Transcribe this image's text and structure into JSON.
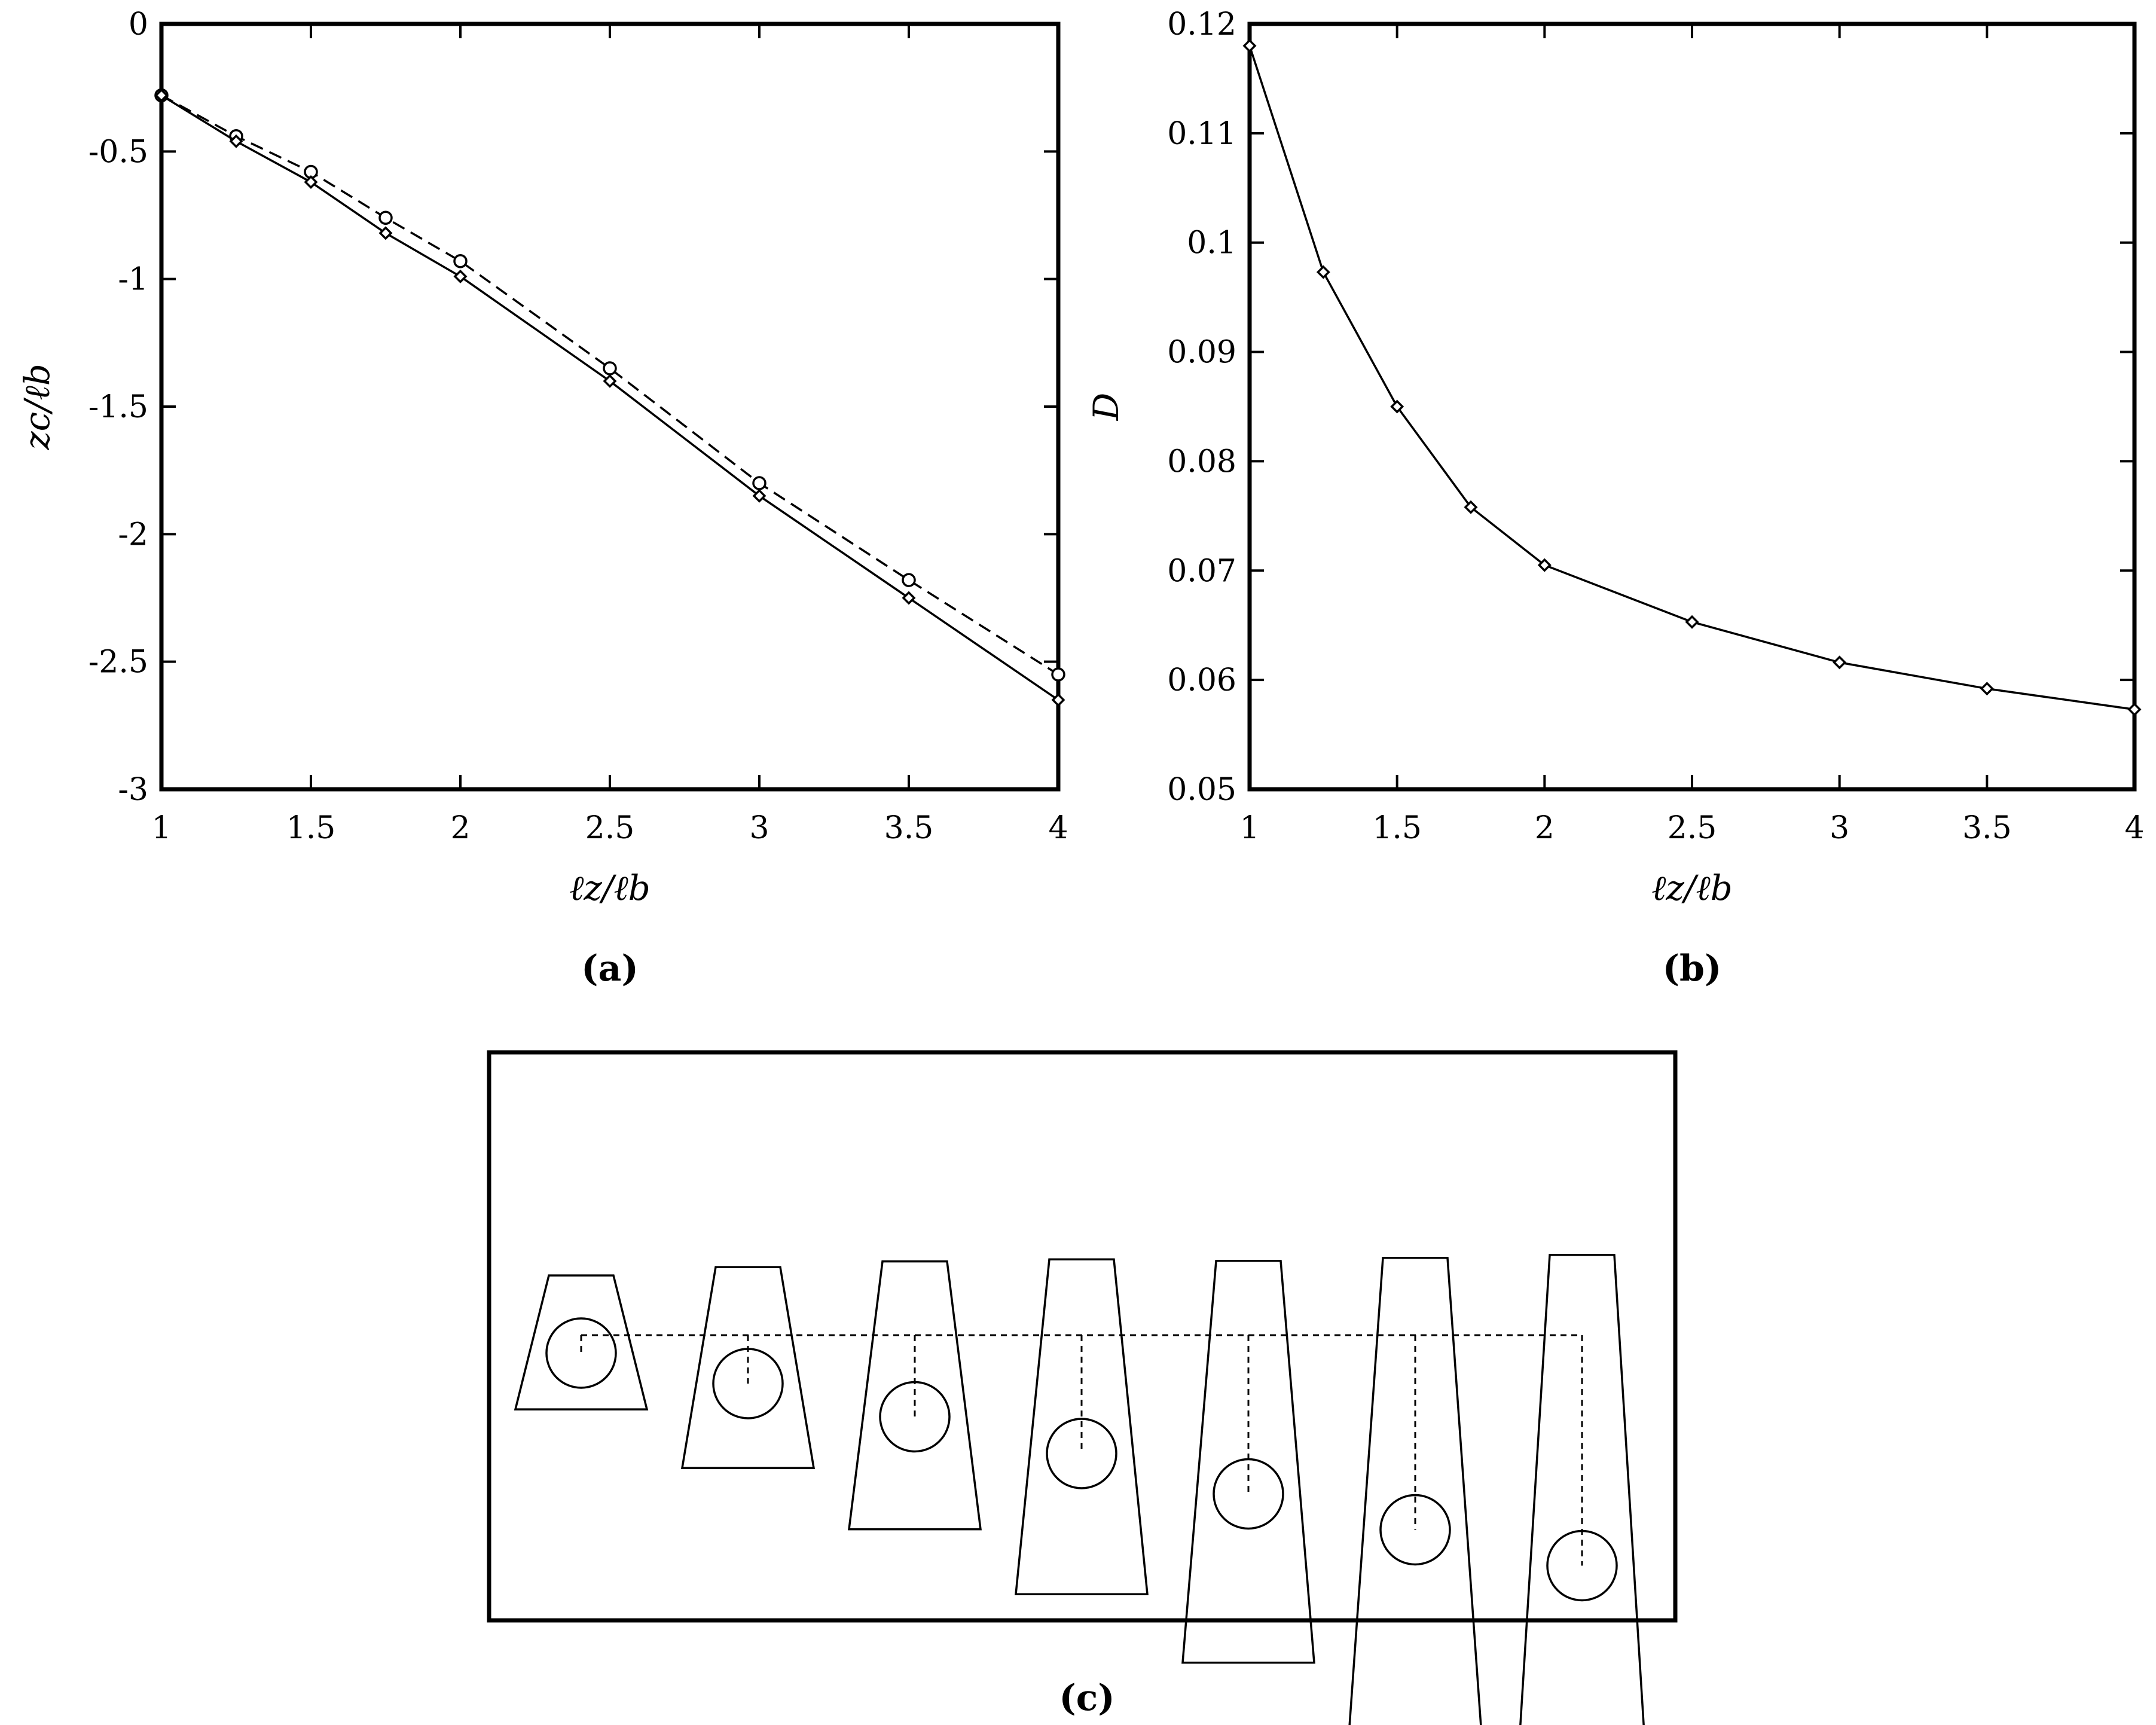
{
  "chart_data": [
    {
      "type": "line",
      "panel_label": "(a)",
      "xlabel": "ℓz/ℓb",
      "ylabel": "zc/ℓb",
      "xlim": [
        1,
        4
      ],
      "ylim": [
        -3,
        0
      ],
      "xticks": [
        "1",
        "1.5",
        "2",
        "2.5",
        "3",
        "3.5",
        "4"
      ],
      "yticks": [
        "0",
        "-0.5",
        "-1",
        "-1.5",
        "-2",
        "-2.5",
        "-3"
      ],
      "grid": false,
      "series": [
        {
          "marker": "circle",
          "line_style": "dashed",
          "x": [
            1,
            1.25,
            1.5,
            1.75,
            2,
            2.5,
            3,
            3.5,
            4
          ],
          "y": [
            -0.28,
            -0.44,
            -0.58,
            -0.76,
            -0.93,
            -1.35,
            -1.8,
            -2.18,
            -2.55
          ]
        },
        {
          "marker": "diamond",
          "line_style": "solid",
          "x": [
            1,
            1.25,
            1.5,
            1.75,
            2,
            2.5,
            3,
            3.5,
            4
          ],
          "y": [
            -0.28,
            -0.46,
            -0.62,
            -0.82,
            -0.99,
            -1.4,
            -1.85,
            -2.25,
            -2.65
          ]
        }
      ]
    },
    {
      "type": "line",
      "panel_label": "(b)",
      "xlabel": "ℓz/ℓb",
      "ylabel": "D",
      "xlim": [
        1,
        4
      ],
      "ylim": [
        0.05,
        0.12
      ],
      "xticks": [
        "1",
        "1.5",
        "2",
        "2.5",
        "3",
        "3.5",
        "4"
      ],
      "yticks": [
        "0.12",
        "0.11",
        "0.1",
        "0.09",
        "0.08",
        "0.07",
        "0.06",
        "0.05"
      ],
      "grid": false,
      "series": [
        {
          "marker": "diamond",
          "line_style": "solid",
          "x": [
            1,
            1.25,
            1.5,
            1.75,
            2,
            2.5,
            3,
            3.5,
            4
          ],
          "y": [
            0.118,
            0.0973,
            0.085,
            0.0758,
            0.0705,
            0.0653,
            0.0616,
            0.0592,
            0.0573
          ]
        }
      ]
    }
  ],
  "diagram": {
    "panel_label": "(c)",
    "shapes": [
      {
        "length_ratio": 1,
        "centroid_depth": 0.28
      },
      {
        "length_ratio": 1.5,
        "centroid_depth": 0.62
      },
      {
        "length_ratio": 2,
        "centroid_depth": 0.99
      },
      {
        "length_ratio": 2.5,
        "centroid_depth": 1.4
      },
      {
        "length_ratio": 3,
        "centroid_depth": 1.85
      },
      {
        "length_ratio": 3.5,
        "centroid_depth": 2.25
      },
      {
        "length_ratio": 4,
        "centroid_depth": 2.65
      }
    ]
  }
}
